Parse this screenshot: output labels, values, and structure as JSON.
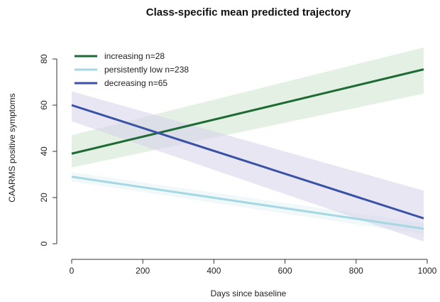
{
  "chart_data": {
    "type": "line",
    "title": "Class-specific mean predicted trajectory",
    "xlabel": "Days since baseline",
    "ylabel": "CAARMS positive symptoms",
    "xlim": [
      0,
      1000
    ],
    "ylim": [
      0,
      85
    ],
    "x_ticks": [
      0,
      200,
      400,
      600,
      800,
      1000
    ],
    "y_ticks": [
      0,
      20,
      40,
      60,
      80
    ],
    "legend_position": "top-left",
    "series": [
      {
        "name": "increasing  n=28",
        "color": "#1e6b35",
        "band_color": "#cfe3cf",
        "x": [
          0,
          990
        ],
        "y": [
          39,
          75.5
        ],
        "ci_upper": [
          47,
          85
        ],
        "ci_lower": [
          33,
          65
        ]
      },
      {
        "name": "persistently low  n=238",
        "color": "#a6d8e3",
        "band_color": "#e3f3f6",
        "x": [
          0,
          990
        ],
        "y": [
          29,
          6.5
        ],
        "ci_upper": [
          31,
          9
        ],
        "ci_lower": [
          27,
          4
        ]
      },
      {
        "name": "decreasing  n=65",
        "color": "#3a52a6",
        "band_color": "#d6d2ea",
        "x": [
          0,
          990
        ],
        "y": [
          60,
          11
        ],
        "ci_upper": [
          66,
          23
        ],
        "ci_lower": [
          53,
          1
        ]
      }
    ]
  }
}
